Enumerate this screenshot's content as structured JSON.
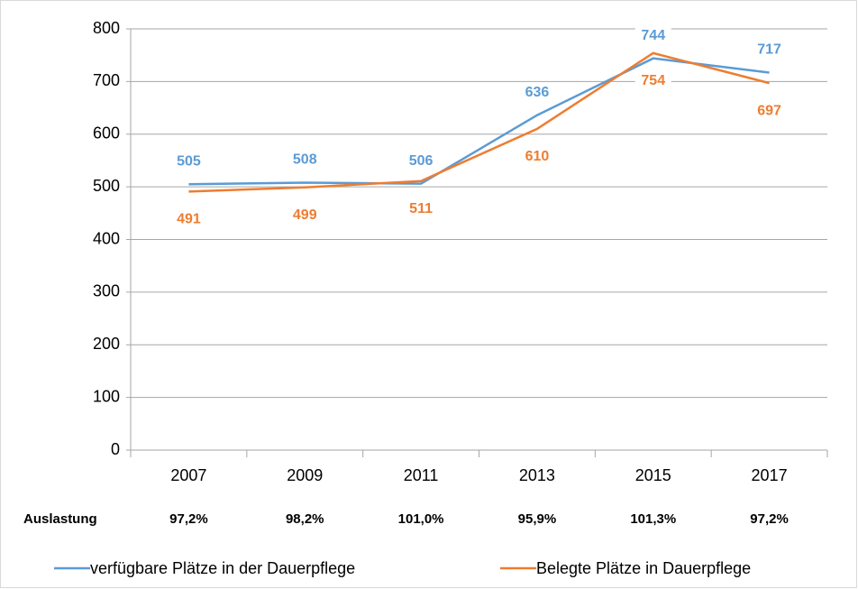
{
  "chart_data": {
    "type": "line",
    "categories": [
      "2007",
      "2009",
      "2011",
      "2013",
      "2015",
      "2017"
    ],
    "series": [
      {
        "name": "verfügbare Plätze in der Dauerpflege",
        "color": "#5b9bd5",
        "values": [
          505,
          508,
          506,
          636,
          744,
          717
        ]
      },
      {
        "name": "Belegte Plätze in Dauerpflege",
        "color": "#ed7d31",
        "values": [
          491,
          499,
          511,
          610,
          754,
          697
        ]
      }
    ],
    "ylim": [
      0,
      800
    ],
    "yticks": [
      0,
      100,
      200,
      300,
      400,
      500,
      600,
      700,
      800
    ],
    "grid": true,
    "legend": "bottom",
    "row_label": "Auslastung",
    "row_values": [
      "97,2%",
      "98,2%",
      "101,0%",
      "95,9%",
      "101,3%",
      "97,2%"
    ]
  }
}
